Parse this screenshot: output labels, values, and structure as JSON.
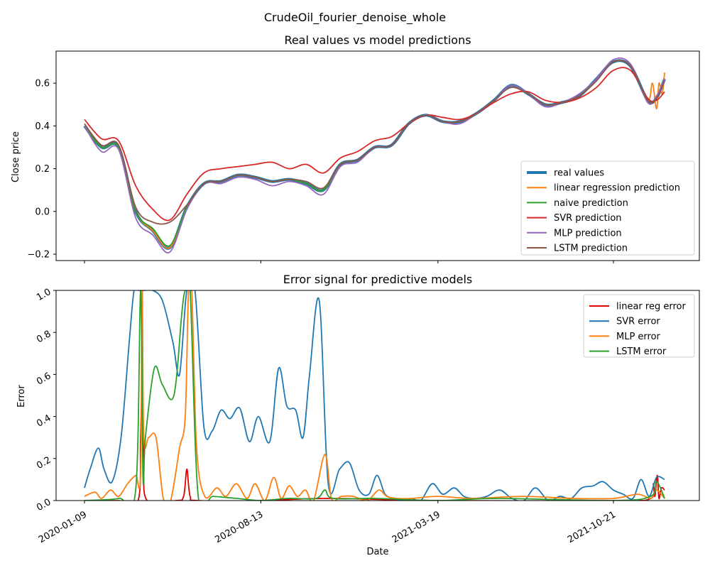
{
  "figure": {
    "suptitle": "CrudeOil_fourier_denoise_whole"
  },
  "chart_data": [
    {
      "type": "line",
      "title": "Real values vs model predictions",
      "xlabel": "",
      "ylabel": "Close price",
      "ylim": [
        -0.23,
        0.75
      ],
      "yticks": [
        -0.2,
        0.0,
        0.2,
        0.4,
        0.6
      ],
      "ytick_labels": [
        "−0.2",
        "0.0",
        "0.2",
        "0.4",
        "0.6"
      ],
      "legend_placement": "lower right",
      "grid": false,
      "series": [
        {
          "name": "real values",
          "color": "#1f77b4",
          "bold": true,
          "x": [
            "2020-01-09",
            "2020-01-30",
            "2020-02-20",
            "2020-03-12",
            "2020-04-02",
            "2020-04-23",
            "2020-05-14",
            "2020-06-04",
            "2020-06-25",
            "2020-07-16",
            "2020-08-06",
            "2020-08-27",
            "2020-09-17",
            "2020-10-08",
            "2020-10-29",
            "2020-11-19",
            "2020-12-10",
            "2020-12-31",
            "2021-01-21",
            "2021-02-11",
            "2021-03-04",
            "2021-03-25",
            "2021-04-15",
            "2021-05-06",
            "2021-05-27",
            "2021-06-17",
            "2021-07-08",
            "2021-07-29",
            "2021-08-19",
            "2021-09-09",
            "2021-09-30",
            "2021-10-21",
            "2021-11-11",
            "2021-12-02",
            "2021-12-13",
            "2021-12-23"
          ],
          "y": [
            0.4,
            0.3,
            0.3,
            0.0,
            -0.09,
            -0.17,
            0.02,
            0.13,
            0.14,
            0.17,
            0.16,
            0.14,
            0.15,
            0.13,
            0.1,
            0.22,
            0.24,
            0.3,
            0.31,
            0.41,
            0.45,
            0.42,
            0.42,
            0.46,
            0.52,
            0.59,
            0.55,
            0.5,
            0.51,
            0.54,
            0.62,
            0.7,
            0.68,
            0.52,
            0.53,
            0.62
          ]
        },
        {
          "name": "linear regression prediction",
          "color": "#ff7f0e",
          "x": [
            "2020-01-09",
            "2020-01-30",
            "2020-02-20",
            "2020-03-12",
            "2020-04-02",
            "2020-04-23",
            "2020-05-14",
            "2020-06-04",
            "2020-06-25",
            "2020-07-16",
            "2020-08-06",
            "2020-08-27",
            "2020-09-17",
            "2020-10-08",
            "2020-10-29",
            "2020-11-19",
            "2020-12-10",
            "2020-12-31",
            "2021-01-21",
            "2021-02-11",
            "2021-03-04",
            "2021-03-25",
            "2021-04-15",
            "2021-05-06",
            "2021-05-27",
            "2021-06-17",
            "2021-07-08",
            "2021-07-29",
            "2021-08-19",
            "2021-09-09",
            "2021-09-30",
            "2021-10-21",
            "2021-11-11",
            "2021-12-02",
            "2021-12-08",
            "2021-12-13",
            "2021-12-16",
            "2021-12-20",
            "2021-12-23"
          ],
          "y": [
            0.4,
            0.3,
            0.3,
            0.0,
            -0.09,
            -0.17,
            0.02,
            0.13,
            0.14,
            0.17,
            0.16,
            0.14,
            0.15,
            0.13,
            0.1,
            0.22,
            0.24,
            0.3,
            0.31,
            0.41,
            0.45,
            0.42,
            0.42,
            0.46,
            0.52,
            0.59,
            0.55,
            0.5,
            0.51,
            0.54,
            0.62,
            0.7,
            0.68,
            0.52,
            0.6,
            0.48,
            0.6,
            0.55,
            0.65
          ]
        },
        {
          "name": "naive prediction",
          "color": "#2ca02c",
          "x": [
            "2020-01-09",
            "2020-01-30",
            "2020-02-20",
            "2020-03-12",
            "2020-04-02",
            "2020-04-23",
            "2020-05-14",
            "2020-06-04",
            "2020-06-25",
            "2020-07-16",
            "2020-08-06",
            "2020-08-27",
            "2020-09-17",
            "2020-10-08",
            "2020-10-29",
            "2020-11-19",
            "2020-12-10",
            "2020-12-31",
            "2021-01-21",
            "2021-02-11",
            "2021-03-04",
            "2021-03-25",
            "2021-04-15",
            "2021-05-06",
            "2021-05-27",
            "2021-06-17",
            "2021-07-08",
            "2021-07-29",
            "2021-08-19",
            "2021-09-09",
            "2021-09-30",
            "2021-10-21",
            "2021-11-11",
            "2021-12-02",
            "2021-12-13",
            "2021-12-23"
          ],
          "y": [
            0.4,
            0.3,
            0.3,
            0.0,
            -0.08,
            -0.16,
            0.02,
            0.13,
            0.14,
            0.17,
            0.16,
            0.14,
            0.15,
            0.13,
            0.1,
            0.22,
            0.24,
            0.3,
            0.31,
            0.41,
            0.45,
            0.42,
            0.42,
            0.46,
            0.52,
            0.59,
            0.55,
            0.5,
            0.51,
            0.54,
            0.62,
            0.7,
            0.68,
            0.52,
            0.53,
            0.62
          ]
        },
        {
          "name": "SVR prediction",
          "color": "#d62728",
          "x": [
            "2020-01-09",
            "2020-01-30",
            "2020-02-20",
            "2020-03-12",
            "2020-04-02",
            "2020-04-23",
            "2020-05-14",
            "2020-06-04",
            "2020-06-25",
            "2020-07-16",
            "2020-08-06",
            "2020-08-27",
            "2020-09-17",
            "2020-10-08",
            "2020-10-29",
            "2020-11-19",
            "2020-12-10",
            "2020-12-31",
            "2021-01-21",
            "2021-02-11",
            "2021-03-04",
            "2021-03-25",
            "2021-04-15",
            "2021-05-06",
            "2021-05-27",
            "2021-06-17",
            "2021-07-08",
            "2021-07-29",
            "2021-08-19",
            "2021-09-09",
            "2021-09-30",
            "2021-10-21",
            "2021-11-11",
            "2021-12-02",
            "2021-12-13",
            "2021-12-23"
          ],
          "y": [
            0.43,
            0.34,
            0.33,
            0.12,
            0.01,
            -0.04,
            0.08,
            0.18,
            0.2,
            0.21,
            0.22,
            0.23,
            0.2,
            0.22,
            0.18,
            0.25,
            0.28,
            0.33,
            0.35,
            0.41,
            0.45,
            0.44,
            0.43,
            0.46,
            0.51,
            0.55,
            0.56,
            0.52,
            0.51,
            0.53,
            0.58,
            0.66,
            0.66,
            0.53,
            0.52,
            0.56
          ]
        },
        {
          "name": "MLP prediction",
          "color": "#9467bd",
          "x": [
            "2020-01-09",
            "2020-01-30",
            "2020-02-20",
            "2020-03-12",
            "2020-04-02",
            "2020-04-23",
            "2020-05-14",
            "2020-06-04",
            "2020-06-25",
            "2020-07-16",
            "2020-08-06",
            "2020-08-27",
            "2020-09-17",
            "2020-10-08",
            "2020-10-29",
            "2020-11-19",
            "2020-12-10",
            "2020-12-31",
            "2021-01-21",
            "2021-02-11",
            "2021-03-04",
            "2021-03-25",
            "2021-04-15",
            "2021-05-06",
            "2021-05-27",
            "2021-06-17",
            "2021-07-08",
            "2021-07-29",
            "2021-08-19",
            "2021-09-09",
            "2021-09-30",
            "2021-10-21",
            "2021-11-11",
            "2021-12-02",
            "2021-12-13",
            "2021-12-23"
          ],
          "y": [
            0.4,
            0.28,
            0.29,
            -0.03,
            -0.11,
            -0.19,
            0.01,
            0.13,
            0.13,
            0.16,
            0.15,
            0.12,
            0.14,
            0.12,
            0.08,
            0.21,
            0.23,
            0.3,
            0.31,
            0.41,
            0.45,
            0.42,
            0.41,
            0.46,
            0.52,
            0.59,
            0.55,
            0.49,
            0.51,
            0.55,
            0.62,
            0.71,
            0.69,
            0.51,
            0.54,
            0.62
          ]
        },
        {
          "name": "LSTM prediction",
          "color": "#8c564b",
          "x": [
            "2020-01-09",
            "2020-01-30",
            "2020-02-20",
            "2020-03-12",
            "2020-04-02",
            "2020-04-23",
            "2020-05-14",
            "2020-06-04",
            "2020-06-25",
            "2020-07-16",
            "2020-08-06",
            "2020-08-27",
            "2020-09-17",
            "2020-10-08",
            "2020-10-29",
            "2020-11-19",
            "2020-12-10",
            "2020-12-31",
            "2021-01-21",
            "2021-02-11",
            "2021-03-04",
            "2021-03-25",
            "2021-04-15",
            "2021-05-06",
            "2021-05-27",
            "2021-06-17",
            "2021-07-08",
            "2021-07-29",
            "2021-08-19",
            "2021-09-09",
            "2021-09-30",
            "2021-10-21",
            "2021-11-11",
            "2021-12-02",
            "2021-12-13",
            "2021-12-23"
          ],
          "y": [
            0.41,
            0.31,
            0.31,
            0.02,
            -0.05,
            -0.05,
            0.03,
            0.13,
            0.14,
            0.17,
            0.16,
            0.14,
            0.15,
            0.14,
            0.11,
            0.22,
            0.24,
            0.3,
            0.31,
            0.41,
            0.45,
            0.42,
            0.42,
            0.46,
            0.52,
            0.58,
            0.55,
            0.5,
            0.51,
            0.54,
            0.61,
            0.7,
            0.68,
            0.52,
            0.53,
            0.61
          ]
        }
      ]
    },
    {
      "type": "line",
      "title": "Error signal for predictive models",
      "xlabel": "Date",
      "ylabel": "Error",
      "ylim": [
        0.0,
        1.0
      ],
      "yticks": [
        0.0,
        0.2,
        0.4,
        0.6,
        0.8,
        1.0
      ],
      "ytick_labels": [
        "0.0",
        "0.2",
        "0.4",
        "0.6",
        "0.8",
        "1.0"
      ],
      "xticks": [
        "2020-01-09",
        "2020-08-13",
        "2021-03-19",
        "2021-10-21"
      ],
      "legend_placement": "upper right",
      "grid": false,
      "series": [
        {
          "name": "linear reg error",
          "color": "#e00000",
          "x": [
            "2020-01-09",
            "2020-02-20",
            "2020-03-15",
            "2020-03-18",
            "2020-03-20",
            "2020-03-22",
            "2020-03-26",
            "2020-05-01",
            "2020-05-10",
            "2020-05-14",
            "2020-05-18",
            "2020-05-28",
            "2020-08-13",
            "2020-11-05",
            "2021-03-19",
            "2021-10-21",
            "2021-12-06",
            "2021-12-09",
            "2021-12-11",
            "2021-12-14",
            "2021-12-16",
            "2021-12-19",
            "2021-12-23"
          ],
          "y": [
            0.0,
            0.0,
            0.0,
            0.3,
            0.52,
            0.2,
            0.0,
            0.0,
            0.02,
            0.15,
            0.02,
            0.0,
            0.0,
            0.01,
            0.0,
            0.0,
            0.01,
            0.08,
            0.02,
            0.12,
            0.01,
            0.06,
            0.05
          ]
        },
        {
          "name": "SVR error",
          "color": "#1f77b4",
          "x": [
            "2020-01-09",
            "2020-01-16",
            "2020-01-26",
            "2020-02-02",
            "2020-02-12",
            "2020-02-23",
            "2020-03-04",
            "2020-03-10",
            "2020-03-16",
            "2020-03-23",
            "2020-04-02",
            "2020-04-14",
            "2020-04-27",
            "2020-05-05",
            "2020-05-14",
            "2020-05-24",
            "2020-06-04",
            "2020-06-14",
            "2020-06-25",
            "2020-07-06",
            "2020-07-18",
            "2020-07-30",
            "2020-08-10",
            "2020-08-24",
            "2020-09-04",
            "2020-09-14",
            "2020-09-25",
            "2020-10-04",
            "2020-10-12",
            "2020-10-24",
            "2020-11-04",
            "2020-11-18",
            "2020-11-30",
            "2020-12-12",
            "2020-12-24",
            "2021-01-03",
            "2021-01-13",
            "2021-01-24",
            "2021-02-04",
            "2021-02-15",
            "2021-02-26",
            "2021-03-12",
            "2021-03-25",
            "2021-04-08",
            "2021-04-20",
            "2021-05-02",
            "2021-05-18",
            "2021-06-03",
            "2021-06-18",
            "2021-07-03",
            "2021-07-17",
            "2021-08-02",
            "2021-08-16",
            "2021-08-30",
            "2021-09-12",
            "2021-09-26",
            "2021-10-08",
            "2021-10-21",
            "2021-11-02",
            "2021-11-14",
            "2021-11-24",
            "2021-12-04",
            "2021-12-13",
            "2021-12-23"
          ],
          "y": [
            0.06,
            0.15,
            0.25,
            0.15,
            0.09,
            0.3,
            0.75,
            1.0,
            1.0,
            1.0,
            1.0,
            0.95,
            0.75,
            0.6,
            1.0,
            1.0,
            0.35,
            0.33,
            0.43,
            0.39,
            0.44,
            0.28,
            0.4,
            0.28,
            0.63,
            0.45,
            0.43,
            0.3,
            0.6,
            0.95,
            0.08,
            0.15,
            0.18,
            0.05,
            0.03,
            0.12,
            0.03,
            0.01,
            0.0,
            0.01,
            0.0,
            0.08,
            0.03,
            0.06,
            0.02,
            0.01,
            0.02,
            0.05,
            0.01,
            0.0,
            0.06,
            0.0,
            0.02,
            0.01,
            0.06,
            0.07,
            0.09,
            0.05,
            0.03,
            0.01,
            0.1,
            0.02,
            0.11,
            0.1
          ]
        },
        {
          "name": "MLP error",
          "color": "#ff7f0e",
          "x": [
            "2020-01-09",
            "2020-01-22",
            "2020-01-30",
            "2020-02-10",
            "2020-02-20",
            "2020-03-02",
            "2020-03-12",
            "2020-03-18",
            "2020-03-20",
            "2020-03-22",
            "2020-03-28",
            "2020-04-06",
            "2020-04-15",
            "2020-04-24",
            "2020-05-05",
            "2020-05-12",
            "2020-05-16",
            "2020-05-20",
            "2020-05-26",
            "2020-06-05",
            "2020-06-20",
            "2020-07-01",
            "2020-07-14",
            "2020-07-27",
            "2020-08-06",
            "2020-08-18",
            "2020-08-29",
            "2020-09-07",
            "2020-09-17",
            "2020-09-27",
            "2020-10-07",
            "2020-10-17",
            "2020-10-31",
            "2020-11-08",
            "2020-11-20",
            "2020-12-05",
            "2020-12-22",
            "2021-01-05",
            "2021-01-15",
            "2021-01-27",
            "2021-02-15",
            "2021-03-19",
            "2021-05-01",
            "2021-07-01",
            "2021-09-01",
            "2021-10-21",
            "2021-11-20",
            "2021-12-06",
            "2021-12-13",
            "2021-12-23"
          ],
          "y": [
            0.02,
            0.04,
            0.01,
            0.05,
            0.02,
            0.08,
            0.12,
            0.12,
            1.0,
            0.3,
            0.3,
            0.3,
            0.01,
            0.0,
            0.25,
            0.4,
            1.0,
            1.0,
            0.25,
            0.02,
            0.06,
            0.02,
            0.08,
            0.01,
            0.08,
            0.0,
            0.11,
            0.01,
            0.07,
            0.02,
            0.05,
            0.0,
            0.22,
            0.01,
            0.02,
            0.02,
            0.0,
            0.05,
            0.02,
            0.01,
            0.01,
            0.02,
            0.01,
            0.02,
            0.01,
            0.01,
            0.03,
            0.01,
            0.05,
            0.01
          ]
        },
        {
          "name": "LSTM error",
          "color": "#2ca02c",
          "x": [
            "2020-01-09",
            "2020-02-20",
            "2020-03-12",
            "2020-03-18",
            "2020-03-21",
            "2020-03-24",
            "2020-04-04",
            "2020-04-14",
            "2020-04-28",
            "2020-05-08",
            "2020-05-12",
            "2020-05-18",
            "2020-05-28",
            "2020-06-15",
            "2020-07-15",
            "2020-08-13",
            "2020-09-15",
            "2020-10-20",
            "2020-10-31",
            "2020-11-10",
            "2021-01-01",
            "2021-03-19",
            "2021-06-01",
            "2021-10-21",
            "2021-12-06",
            "2021-12-13",
            "2021-12-23"
          ],
          "y": [
            0.0,
            0.01,
            0.05,
            1.0,
            0.11,
            0.3,
            0.63,
            0.55,
            0.5,
            0.9,
            1.0,
            1.0,
            0.02,
            0.02,
            0.01,
            0.0,
            0.01,
            0.01,
            0.05,
            0.01,
            0.01,
            0.0,
            0.01,
            0.0,
            0.02,
            0.09,
            0.01
          ]
        }
      ]
    }
  ]
}
